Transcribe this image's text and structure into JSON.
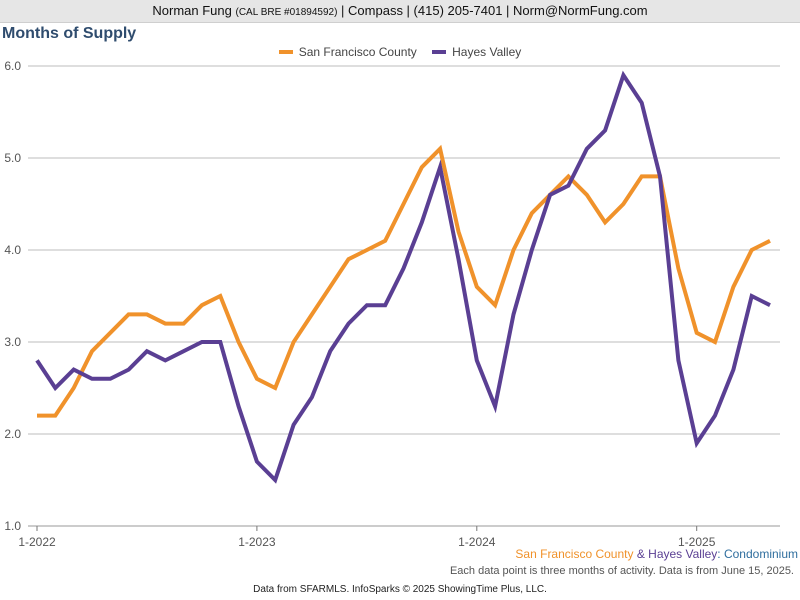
{
  "header": {
    "name": "Norman Fung",
    "license": "(CAL BRE #01894592)",
    "rest": "| Compass | (415) 205-7401 | Norm@NormFung.com"
  },
  "chart_data": {
    "type": "line",
    "title": "Months of Supply",
    "xlabel": "",
    "ylabel": "",
    "ylim": [
      1.0,
      6.0
    ],
    "yticks": [
      "1.0",
      "2.0",
      "3.0",
      "4.0",
      "5.0",
      "6.0"
    ],
    "xticks": [
      "1-2022",
      "1-2023",
      "1-2024",
      "1-2025"
    ],
    "x": [
      "2022-01",
      "2022-02",
      "2022-03",
      "2022-04",
      "2022-05",
      "2022-06",
      "2022-07",
      "2022-08",
      "2022-09",
      "2022-10",
      "2022-11",
      "2022-12",
      "2023-01",
      "2023-02",
      "2023-03",
      "2023-04",
      "2023-05",
      "2023-06",
      "2023-07",
      "2023-08",
      "2023-09",
      "2023-10",
      "2023-11",
      "2023-12",
      "2024-01",
      "2024-02",
      "2024-03",
      "2024-04",
      "2024-05",
      "2024-06",
      "2024-07",
      "2024-08",
      "2024-09",
      "2024-10",
      "2024-11",
      "2024-12",
      "2025-01",
      "2025-02",
      "2025-03",
      "2025-04",
      "2025-05"
    ],
    "grid": true,
    "legend_position": "top-center",
    "series": [
      {
        "name": "San Francisco County",
        "color": "#f0922b",
        "values": [
          2.2,
          2.2,
          2.5,
          2.9,
          3.1,
          3.3,
          3.3,
          3.2,
          3.2,
          3.4,
          3.5,
          3.0,
          2.6,
          2.5,
          3.0,
          3.3,
          3.6,
          3.9,
          4.0,
          4.1,
          4.5,
          4.9,
          5.1,
          4.2,
          3.6,
          3.4,
          4.0,
          4.4,
          4.6,
          4.8,
          4.6,
          4.3,
          4.5,
          4.8,
          4.8,
          3.8,
          3.1,
          3.0,
          3.6,
          4.0,
          4.1
        ]
      },
      {
        "name": "Hayes Valley",
        "color": "#5a3f93",
        "values": [
          2.8,
          2.5,
          2.7,
          2.6,
          2.6,
          2.7,
          2.9,
          2.8,
          2.9,
          3.0,
          3.0,
          2.3,
          1.7,
          1.5,
          2.1,
          2.4,
          2.9,
          3.2,
          3.4,
          3.4,
          3.8,
          4.3,
          4.9,
          3.9,
          2.8,
          2.3,
          3.3,
          4.0,
          4.6,
          4.7,
          5.1,
          5.3,
          5.9,
          5.6,
          4.8,
          2.8,
          1.9,
          2.2,
          2.7,
          3.5,
          3.4
        ]
      }
    ]
  },
  "caption": {
    "sf": "San Francisco County",
    "amp": " & ",
    "hv": "Hayes Valley",
    "suffix": ": Condominium",
    "sf_color": "#f0922b",
    "hv_color": "#5a3f93",
    "suffix_color": "#2f6e9e"
  },
  "note": "Each data point is three months of activity. Data is from June 15, 2025.",
  "footer": "Data from SFARMLS. InfoSparks © 2025 ShowingTime Plus, LLC."
}
